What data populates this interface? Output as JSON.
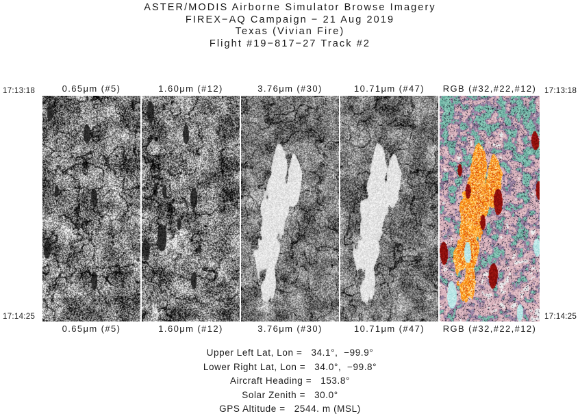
{
  "title": {
    "line1": "ASTER/MODIS Airborne Simulator Browse Imagery",
    "line2": "FIREX−AQ Campaign − 21 Aug 2019",
    "line3": "Texas (Vivian Fire)",
    "line4": "Flight #19−817−27 Track #2"
  },
  "timestamps": {
    "start": "17:13:18",
    "end": "17:14:25"
  },
  "panels": [
    {
      "label": "0.65μm (#5)"
    },
    {
      "label": "1.60μm (#12)"
    },
    {
      "label": "3.76μm (#30)"
    },
    {
      "label": "10.71μm (#47)"
    },
    {
      "label": "RGB (#32,#22,#12)"
    }
  ],
  "metadata": [
    {
      "label": "Upper Left Lat, Lon =",
      "value": "34.1°,  −99.9°"
    },
    {
      "label": "Lower Right Lat, Lon =",
      "value": "34.0°,  −99.8°"
    },
    {
      "label": "Aircraft Heading =",
      "value": "153.8°"
    },
    {
      "label": "Solar Zenith =",
      "value": "30.0°"
    },
    {
      "label": "GPS Altitude =",
      "value": "2544. m (MSL)"
    }
  ],
  "colors": {
    "page_background": "#ffffff",
    "text": "#1a1a1a",
    "fire_orange": "#ffa428",
    "fire_yellow": "#ffeeaa",
    "burn_red": "#8f0a0a",
    "terrain_teal": "#6fa398",
    "terrain_pink": "#c4a0aa"
  }
}
